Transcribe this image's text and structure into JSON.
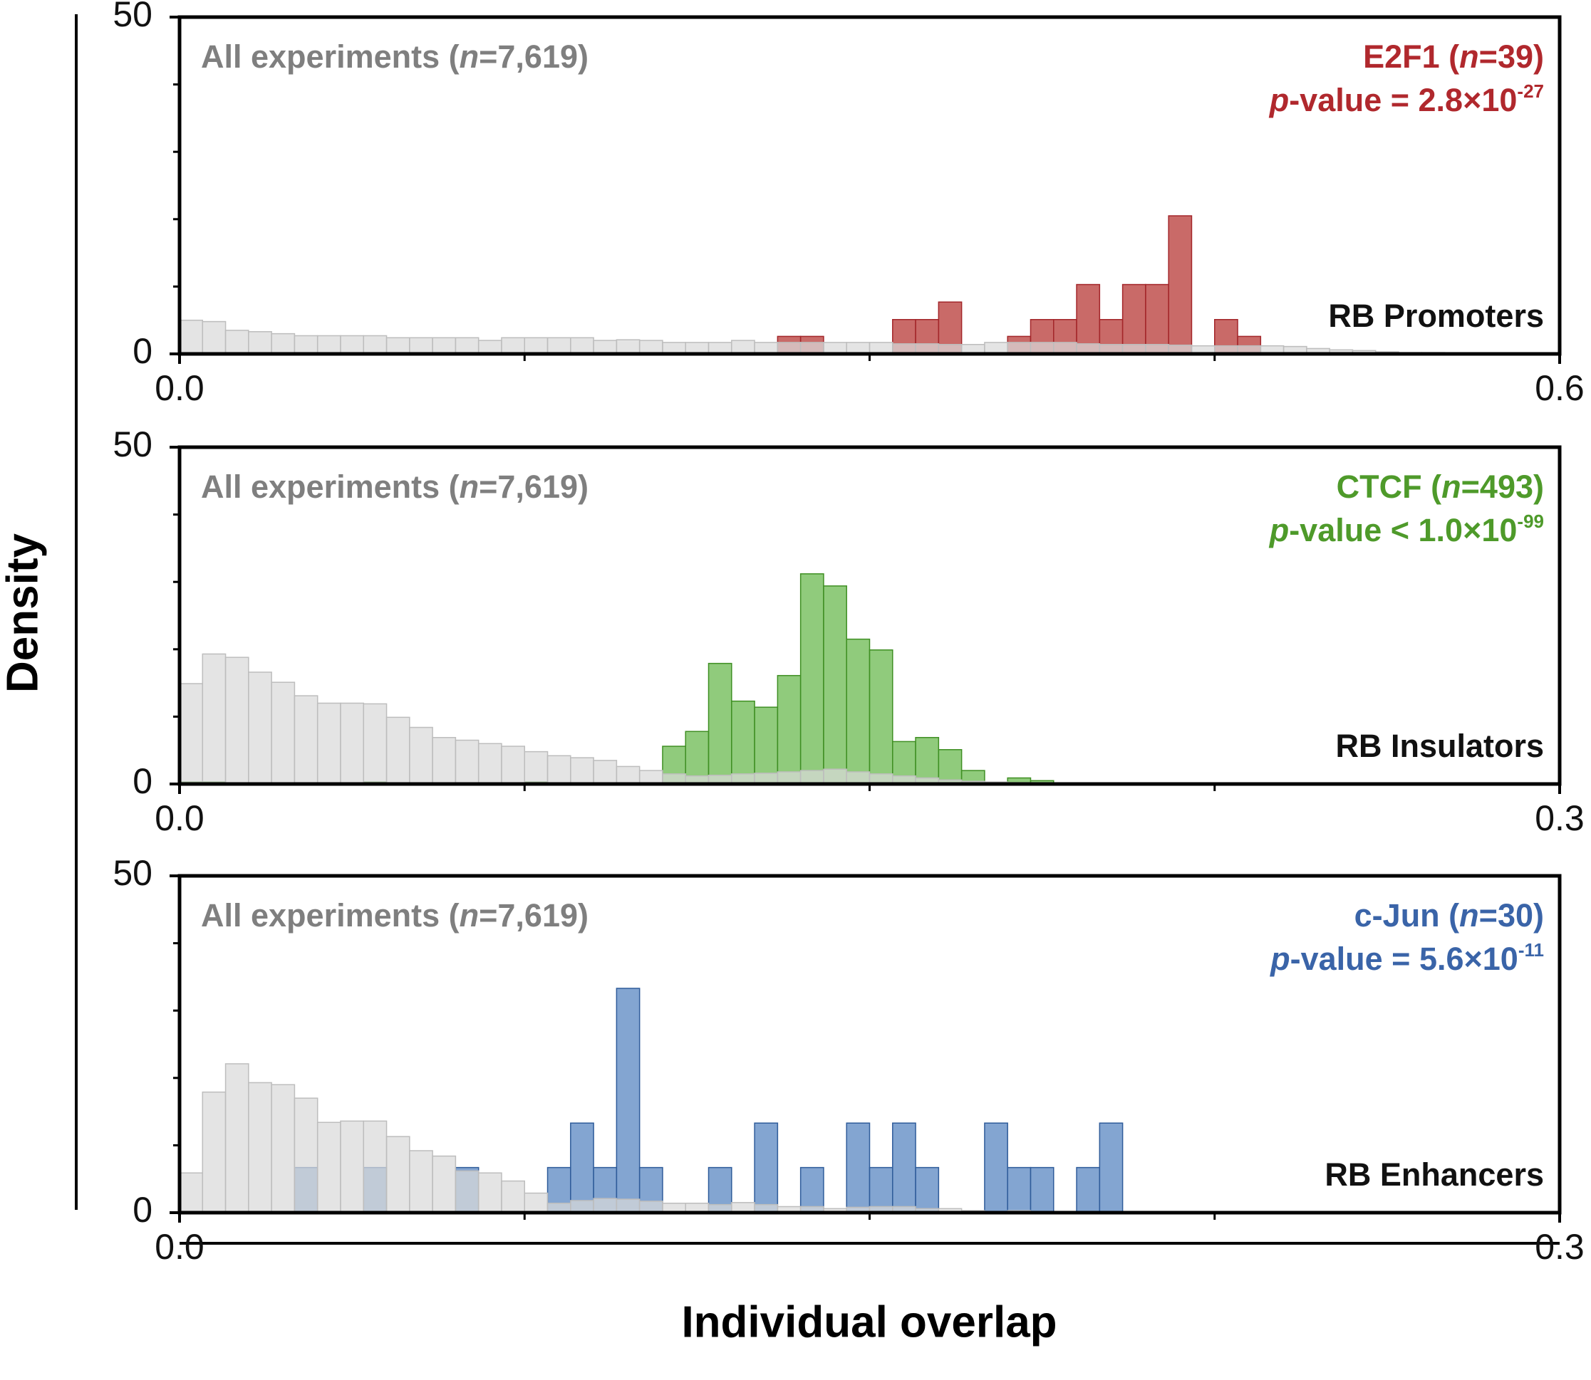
{
  "ylabel": "Density",
  "xlabel": "Individual overlap",
  "chart_data": [
    {
      "type": "histogram",
      "panel_label": "RB Promoters",
      "bins": [
        0,
        0.01,
        0.02,
        0.03,
        0.04,
        0.05,
        0.06,
        0.07,
        0.08,
        0.09,
        0.1,
        0.11,
        0.12,
        0.13,
        0.14,
        0.15,
        0.16,
        0.17,
        0.18,
        0.19,
        0.2,
        0.21,
        0.22,
        0.23,
        0.24,
        0.25,
        0.26,
        0.27,
        0.28,
        0.29,
        0.3,
        0.31,
        0.32,
        0.33,
        0.34,
        0.35,
        0.36,
        0.37,
        0.38,
        0.39,
        0.4,
        0.41,
        0.42,
        0.43,
        0.44,
        0.45,
        0.46,
        0.47,
        0.48,
        0.49,
        0.5,
        0.51,
        0.52,
        0.53,
        0.54,
        0.55,
        0.56,
        0.57,
        0.58,
        0.59,
        0.6
      ],
      "xlim": [
        0,
        0.6
      ],
      "xticks": [
        {
          "value": 0,
          "label": "0.0"
        },
        0.6
      ],
      "xminor": [
        0.15,
        0.3,
        0.45
      ],
      "ylim": [
        0,
        50
      ],
      "yticks": [
        0,
        50
      ],
      "yminor": [
        10,
        20,
        30,
        40
      ],
      "series": [
        {
          "label": [
            {
              "text": "All experiments ("
            },
            {
              "text": "n",
              "italic": true
            },
            {
              "text": "=7,619)"
            }
          ],
          "color": "#d9d9d9",
          "stroke": "#bdbdbd",
          "text_color": "#7f7f7f",
          "values": [
            5.0,
            4.8,
            3.5,
            3.3,
            3.0,
            2.7,
            2.7,
            2.7,
            2.7,
            2.4,
            2.4,
            2.4,
            2.4,
            2.0,
            2.4,
            2.4,
            2.4,
            2.4,
            2.0,
            2.1,
            2.0,
            1.7,
            1.7,
            1.7,
            2.0,
            1.7,
            1.7,
            1.7,
            1.7,
            1.7,
            1.7,
            1.5,
            1.5,
            1.4,
            1.4,
            1.7,
            1.7,
            1.7,
            1.7,
            1.5,
            1.4,
            1.4,
            1.4,
            1.3,
            1.2,
            1.2,
            1.2,
            1.2,
            1.1,
            0.8,
            0.6,
            0.5,
            0.3,
            0.2,
            0.2,
            0,
            0,
            0,
            0,
            0
          ]
        },
        {
          "label": [
            {
              "text": "E2F1 ("
            },
            {
              "text": "n",
              "italic": true
            },
            {
              "text": "=39)"
            }
          ],
          "pvalue": [
            {
              "text": "p",
              "italic": true
            },
            {
              "text": "-value = 2.8×10"
            },
            {
              "text": "-27",
              "sup": true
            }
          ],
          "color": "#c0504d",
          "stroke": "#a3262a",
          "text_color": "#b0282d",
          "values": [
            0,
            0,
            0,
            0,
            0,
            0,
            0,
            0,
            0,
            0,
            0,
            0,
            0,
            0,
            0,
            0,
            0,
            0,
            0,
            0,
            0,
            0,
            0,
            0,
            0,
            0,
            2.6,
            2.6,
            0,
            0,
            0,
            5.1,
            5.1,
            7.7,
            0,
            0,
            2.6,
            5.1,
            5.1,
            10.3,
            5.1,
            10.3,
            10.3,
            20.5,
            0,
            5.1,
            2.6,
            0,
            0,
            0,
            0,
            0,
            0,
            0,
            0,
            0,
            0,
            0,
            0,
            0
          ]
        }
      ]
    },
    {
      "type": "histogram",
      "panel_label": "RB Insulators",
      "bins": [
        0,
        0.005,
        0.01,
        0.015,
        0.02,
        0.025,
        0.03,
        0.035,
        0.04,
        0.045,
        0.05,
        0.055,
        0.06,
        0.065,
        0.07,
        0.075,
        0.08,
        0.085,
        0.09,
        0.095,
        0.1,
        0.105,
        0.11,
        0.115,
        0.12,
        0.125,
        0.13,
        0.135,
        0.14,
        0.145,
        0.15,
        0.155,
        0.16,
        0.165,
        0.17,
        0.175,
        0.18,
        0.185,
        0.19,
        0.195,
        0.2,
        0.205,
        0.21,
        0.215,
        0.22,
        0.225,
        0.23,
        0.235,
        0.24,
        0.245,
        0.25,
        0.255,
        0.26,
        0.265,
        0.27,
        0.275,
        0.28,
        0.285,
        0.29,
        0.295,
        0.3
      ],
      "xlim": [
        0,
        0.3
      ],
      "xticks": [
        {
          "value": 0,
          "label": "0.0"
        },
        0.3
      ],
      "xminor": [
        0.075,
        0.15,
        0.225
      ],
      "ylim": [
        0,
        50
      ],
      "yticks": [
        0,
        50
      ],
      "yminor": [
        10,
        20,
        30,
        40
      ],
      "series": [
        {
          "label": [
            {
              "text": "All experiments ("
            },
            {
              "text": "n",
              "italic": true
            },
            {
              "text": "=7,619)"
            }
          ],
          "color": "#d9d9d9",
          "stroke": "#bdbdbd",
          "text_color": "#7f7f7f",
          "values": [
            14.9,
            19.3,
            18.8,
            16.6,
            15.1,
            13.1,
            12.0,
            12.0,
            11.9,
            9.9,
            8.4,
            6.9,
            6.5,
            6.0,
            5.6,
            4.8,
            4.2,
            3.9,
            3.5,
            2.6,
            2.0,
            1.5,
            1.2,
            1.3,
            1.5,
            1.6,
            1.8,
            2.0,
            2.2,
            1.8,
            1.5,
            1.2,
            0.9,
            0.6,
            0.4,
            0.3,
            0.2,
            0.1,
            0,
            0,
            0,
            0,
            0,
            0,
            0,
            0,
            0,
            0,
            0,
            0,
            0,
            0,
            0,
            0,
            0,
            0,
            0,
            0,
            0,
            0
          ]
        },
        {
          "label": [
            {
              "text": "CTCF ("
            },
            {
              "text": "n",
              "italic": true
            },
            {
              "text": "=493)"
            }
          ],
          "pvalue": [
            {
              "text": "p",
              "italic": true
            },
            {
              "text": "-value < 1.0×10"
            },
            {
              "text": "-99",
              "sup": true
            }
          ],
          "color": "#7dc265",
          "stroke": "#3f8f23",
          "text_color": "#4e9a2a",
          "values": [
            0.3,
            0.3,
            0,
            0,
            0,
            0,
            0,
            0,
            0.3,
            0,
            0,
            0,
            0,
            0,
            0,
            0.3,
            0,
            0,
            0,
            0,
            0,
            5.6,
            7.8,
            17.9,
            12.3,
            11.4,
            16.1,
            31.2,
            29.4,
            21.5,
            19.9,
            6.3,
            6.9,
            5.1,
            2.0,
            0,
            0.9,
            0.5,
            0,
            0,
            0,
            0,
            0,
            0,
            0,
            0,
            0,
            0,
            0,
            0,
            0,
            0,
            0,
            0,
            0,
            0,
            0,
            0,
            0,
            0
          ]
        }
      ]
    },
    {
      "type": "histogram",
      "panel_label": "RB Enhancers",
      "bins": [
        0,
        0.005,
        0.01,
        0.015,
        0.02,
        0.025,
        0.03,
        0.035,
        0.04,
        0.045,
        0.05,
        0.055,
        0.06,
        0.065,
        0.07,
        0.075,
        0.08,
        0.085,
        0.09,
        0.095,
        0.1,
        0.105,
        0.11,
        0.115,
        0.12,
        0.125,
        0.13,
        0.135,
        0.14,
        0.145,
        0.15,
        0.155,
        0.16,
        0.165,
        0.17,
        0.175,
        0.18,
        0.185,
        0.19,
        0.195,
        0.2,
        0.205,
        0.21,
        0.215,
        0.22,
        0.225,
        0.23,
        0.235,
        0.24,
        0.245,
        0.25,
        0.255,
        0.26,
        0.265,
        0.27,
        0.275,
        0.28,
        0.285,
        0.29,
        0.295,
        0.3
      ],
      "xlim": [
        0,
        0.3
      ],
      "xticks": [
        {
          "value": 0,
          "label": "0.0"
        },
        0.3
      ],
      "xminor": [
        0.075,
        0.15,
        0.225
      ],
      "ylim": [
        0,
        50
      ],
      "yticks": [
        0,
        50
      ],
      "yminor": [
        10,
        20,
        30,
        40
      ],
      "series": [
        {
          "label": [
            {
              "text": "All experiments ("
            },
            {
              "text": "n",
              "italic": true
            },
            {
              "text": "=7,619)"
            }
          ],
          "color": "#d9d9d9",
          "stroke": "#bdbdbd",
          "text_color": "#7f7f7f",
          "values": [
            5.9,
            17.9,
            22.1,
            19.3,
            19.0,
            17.0,
            13.4,
            13.6,
            13.6,
            11.3,
            9.2,
            8.4,
            6.2,
            5.9,
            4.7,
            2.9,
            1.4,
            1.8,
            2.1,
            2.0,
            1.7,
            1.4,
            1.4,
            1.2,
            1.5,
            1.2,
            0.9,
            0.9,
            0.6,
            0.8,
            0.9,
            0.9,
            0.6,
            0.6,
            0.3,
            0,
            0.3,
            0,
            0,
            0,
            0,
            0,
            0,
            0,
            0,
            0,
            0,
            0,
            0,
            0,
            0,
            0,
            0,
            0,
            0,
            0,
            0,
            0,
            0,
            0
          ]
        },
        {
          "label": [
            {
              "text": "c-Jun ("
            },
            {
              "text": "n",
              "italic": true
            },
            {
              "text": "=30)"
            }
          ],
          "pvalue": [
            {
              "text": "p",
              "italic": true
            },
            {
              "text": "-value = 5.6×10"
            },
            {
              "text": "-11",
              "sup": true
            }
          ],
          "color": "#6d95c9",
          "stroke": "#2f5c9a",
          "text_color": "#3a64a8",
          "values": [
            0,
            0,
            0,
            0,
            0,
            6.7,
            0,
            0,
            6.7,
            0,
            0,
            0,
            6.7,
            0,
            0,
            0,
            6.7,
            13.3,
            6.7,
            33.3,
            6.7,
            0,
            0,
            6.7,
            0,
            13.3,
            0,
            6.7,
            0,
            13.3,
            6.7,
            13.3,
            6.7,
            0,
            0,
            13.3,
            6.7,
            6.7,
            0,
            6.7,
            13.3,
            0,
            0,
            0,
            0,
            0,
            0,
            0,
            0,
            0,
            0,
            0,
            0,
            0,
            0,
            0,
            0,
            0,
            0,
            0
          ]
        }
      ]
    }
  ]
}
